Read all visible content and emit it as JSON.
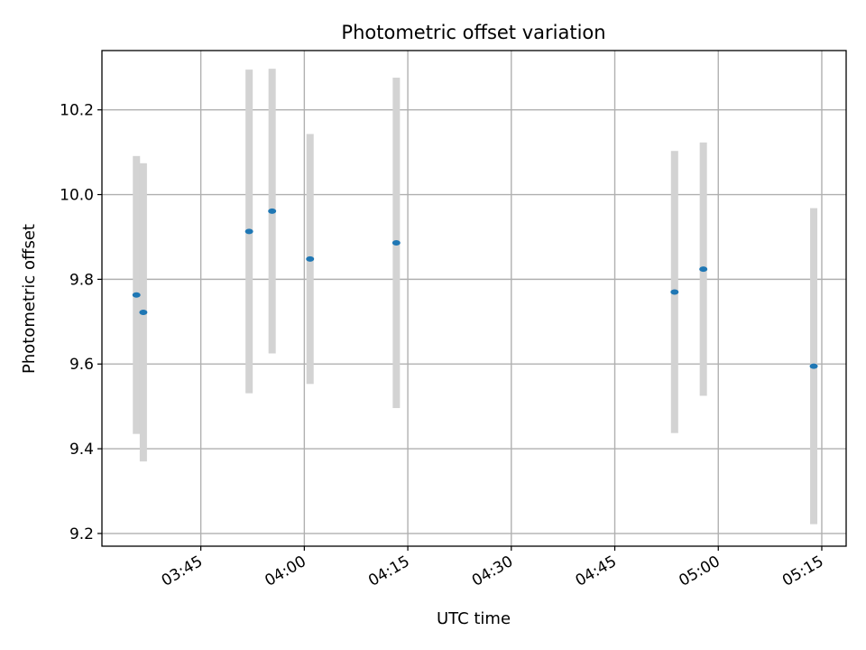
{
  "chart_data": {
    "type": "scatter",
    "title": "Photometric offset variation",
    "xlabel": "UTC time",
    "ylabel": "Photometric offset",
    "x_range": [
      "03:30:40",
      "05:18:32"
    ],
    "ylim": [
      9.17,
      10.34
    ],
    "x_ticks": [
      "03:45",
      "04:00",
      "04:15",
      "04:30",
      "04:45",
      "05:00",
      "05:15"
    ],
    "y_ticks": [
      "9.2",
      "9.4",
      "9.6",
      "9.8",
      "10.0",
      "10.2"
    ],
    "grid": true,
    "series": [
      {
        "marker_color": "#1f77b4",
        "errorbar_color": "#d3d3d3",
        "points": [
          {
            "x": "03:35:40",
            "y": 9.763,
            "yerr": 0.328
          },
          {
            "x": "03:36:40",
            "y": 9.722,
            "yerr": 0.352
          },
          {
            "x": "03:52:00",
            "y": 9.913,
            "yerr": 0.382
          },
          {
            "x": "03:55:20",
            "y": 9.961,
            "yerr": 0.336
          },
          {
            "x": "04:00:50",
            "y": 9.848,
            "yerr": 0.295
          },
          {
            "x": "04:13:20",
            "y": 9.886,
            "yerr": 0.39
          },
          {
            "x": "04:53:40",
            "y": 9.77,
            "yerr": 0.333
          },
          {
            "x": "04:57:50",
            "y": 9.824,
            "yerr": 0.299
          },
          {
            "x": "05:13:50",
            "y": 9.595,
            "yerr": 0.373
          }
        ]
      }
    ]
  }
}
